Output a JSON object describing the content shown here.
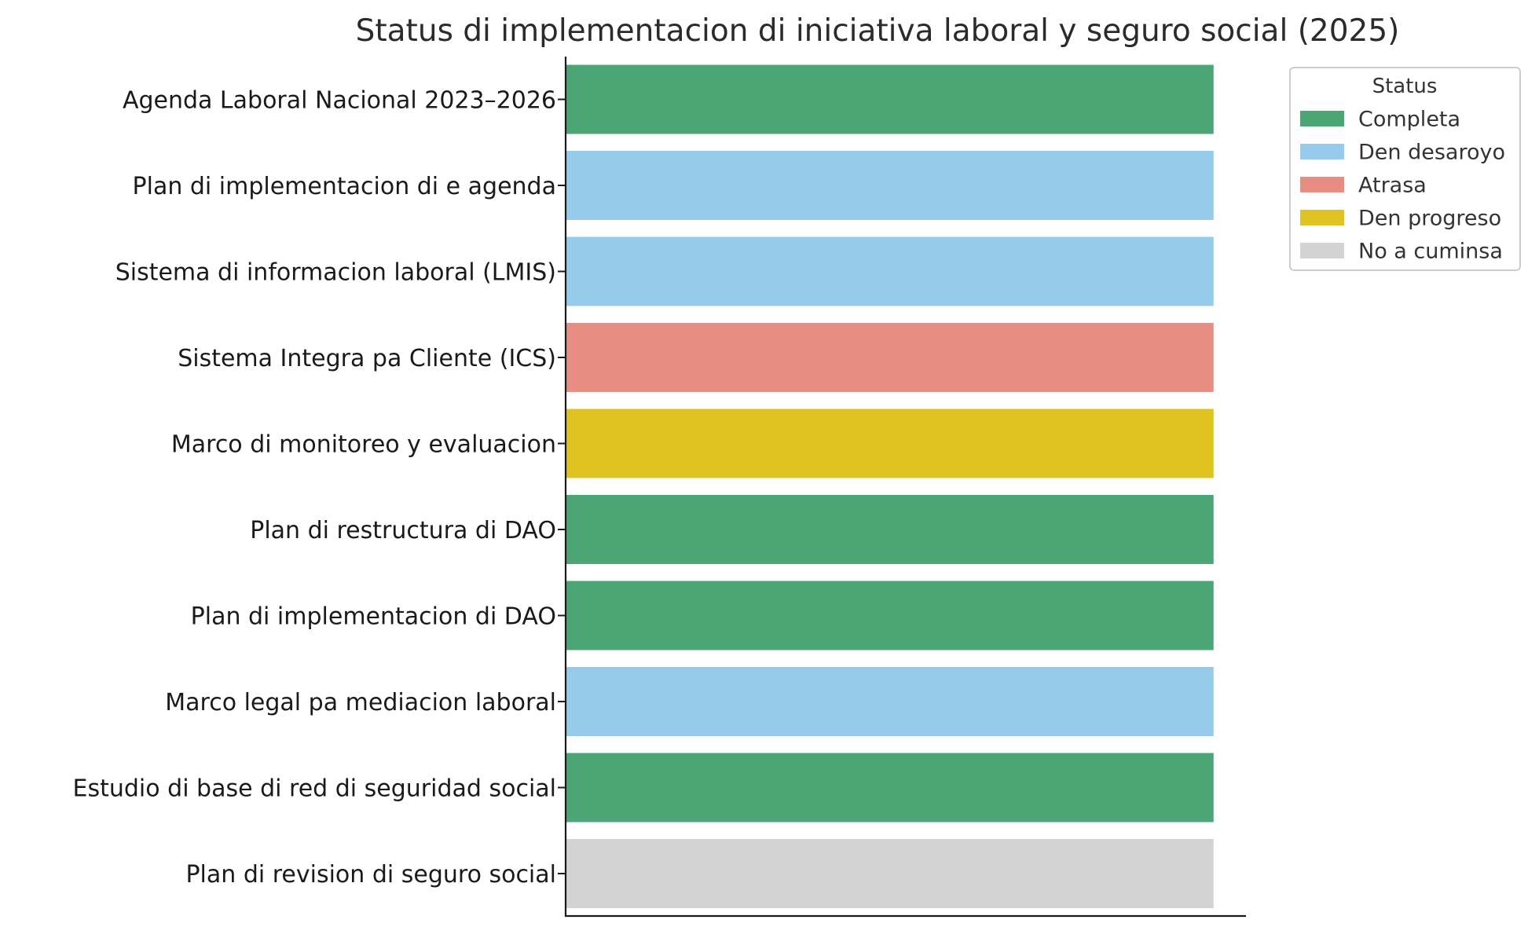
{
  "chart_data": {
    "type": "bar",
    "orientation": "horizontal",
    "title": "Status di implementacion di iniciativa laboral y seguro social (2025)",
    "xlabel": "",
    "ylabel": "",
    "xlim": [
      0,
      1.05
    ],
    "grid": false,
    "categories": [
      "Agenda Laboral Nacional 2023–2026",
      "Plan di implementacion di e agenda",
      "Sistema di informacion laboral (LMIS)",
      "Sistema Integra pa Cliente (ICS)",
      "Marco di monitoreo y evaluacion",
      "Plan di restructura di DAO",
      "Plan di implementacion di DAO",
      "Marco legal pa mediacion laboral",
      "Estudio di base di red di seguridad social",
      "Plan di revision di seguro social"
    ],
    "values": [
      1,
      1,
      1,
      1,
      1,
      1,
      1,
      1,
      1,
      1
    ],
    "status": [
      "Completa",
      "Den desaroyo",
      "Den desaroyo",
      "Atrasa",
      "Den progreso",
      "Completa",
      "Completa",
      "Den desaroyo",
      "Completa",
      "No a cuminsa"
    ],
    "legend": {
      "title": "Status",
      "placement": "upper-right-outside",
      "entries": [
        {
          "label": "Completa",
          "color": "#4ba574"
        },
        {
          "label": "Den desaroyo",
          "color": "#96cbec"
        },
        {
          "label": "Atrasa",
          "color": "#e88d82"
        },
        {
          "label": "Den progreso",
          "color": "#dfc320"
        },
        {
          "label": "No a cuminsa",
          "color": "#d3d3d3"
        }
      ]
    }
  }
}
